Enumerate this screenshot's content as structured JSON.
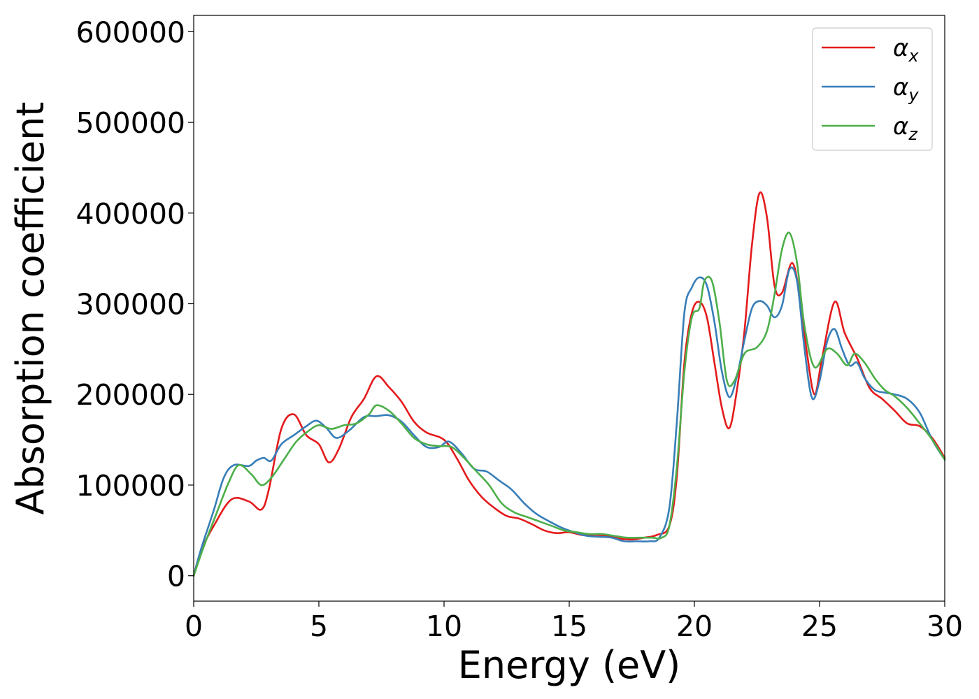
{
  "chart_data": {
    "type": "line",
    "title": "",
    "xlabel": "Energy (eV)",
    "ylabel": "Absorption coefficient",
    "xlim": [
      0,
      30
    ],
    "ylim": [
      -28000,
      618000
    ],
    "xticks": [
      0,
      5,
      10,
      15,
      20,
      25,
      30
    ],
    "xtick_labels": [
      "0",
      "5",
      "10",
      "15",
      "20",
      "25",
      "30"
    ],
    "yticks": [
      0,
      100000,
      200000,
      300000,
      400000,
      500000,
      600000
    ],
    "ytick_labels": [
      "0",
      "100000",
      "200000",
      "300000",
      "400000",
      "500000",
      "600000"
    ],
    "grid": false,
    "legend_position": "top-right",
    "series": [
      {
        "name": "α",
        "subscript": "x",
        "color": "#e41a1c",
        "x": [
          0,
          0.3,
          0.8,
          1.5,
          2.2,
          2.7,
          3.0,
          3.5,
          4.0,
          4.5,
          5.0,
          5.4,
          5.8,
          6.3,
          6.8,
          7.3,
          7.8,
          8.3,
          8.8,
          9.3,
          10.0,
          10.5,
          11.0,
          11.5,
          12.0,
          12.5,
          13.0,
          13.5,
          14.0,
          14.5,
          15.0,
          15.5,
          16.0,
          16.5,
          17.0,
          17.5,
          18.0,
          18.5,
          19.0,
          19.3,
          19.6,
          19.9,
          20.2,
          20.5,
          20.8,
          21.1,
          21.4,
          21.7,
          22.0,
          22.3,
          22.6,
          22.9,
          23.2,
          23.5,
          23.9,
          24.2,
          24.5,
          24.8,
          25.1,
          25.6,
          26.0,
          26.5,
          27.0,
          27.5,
          28.0,
          28.5,
          29.0,
          29.5,
          30.0
        ],
        "values": [
          0,
          28000,
          55000,
          84000,
          82000,
          73000,
          95000,
          162000,
          178000,
          155000,
          145000,
          125000,
          140000,
          175000,
          195000,
          220000,
          208000,
          192000,
          170000,
          158000,
          150000,
          130000,
          105000,
          87000,
          75000,
          66000,
          63000,
          57000,
          50000,
          47000,
          48000,
          45000,
          44000,
          44000,
          41000,
          40000,
          42000,
          45000,
          55000,
          110000,
          235000,
          290000,
          302000,
          285000,
          235000,
          185000,
          163000,
          205000,
          270000,
          365000,
          422000,
          395000,
          320000,
          312000,
          345000,
          310000,
          245000,
          200000,
          240000,
          302000,
          268000,
          240000,
          207000,
          195000,
          182000,
          168000,
          165000,
          152000,
          130000
        ]
      },
      {
        "name": "α",
        "subscript": "y",
        "color": "#377eb8",
        "x": [
          0,
          0.3,
          0.8,
          1.2,
          1.6,
          2.2,
          2.5,
          2.8,
          3.1,
          3.5,
          4.0,
          4.5,
          4.9,
          5.3,
          5.7,
          6.2,
          6.8,
          7.3,
          7.8,
          8.3,
          8.8,
          9.3,
          9.8,
          10.2,
          10.7,
          11.2,
          11.7,
          12.2,
          12.7,
          13.2,
          13.7,
          14.2,
          14.7,
          15.2,
          15.7,
          16.2,
          16.7,
          17.2,
          17.7,
          18.2,
          18.6,
          19.0,
          19.3,
          19.6,
          19.9,
          20.2,
          20.5,
          20.8,
          21.1,
          21.4,
          21.7,
          22.0,
          22.3,
          22.6,
          22.9,
          23.2,
          23.5,
          23.8,
          24.1,
          24.4,
          24.7,
          25.0,
          25.3,
          25.6,
          25.9,
          26.2,
          26.5,
          26.8,
          27.2,
          27.6,
          28.0,
          28.5,
          29.0,
          29.5,
          30.0
        ],
        "values": [
          0,
          30000,
          72000,
          108000,
          122000,
          121000,
          127000,
          130000,
          127000,
          145000,
          155000,
          165000,
          171000,
          163000,
          152000,
          160000,
          175000,
          176000,
          177000,
          170000,
          155000,
          142000,
          142000,
          148000,
          135000,
          118000,
          115000,
          105000,
          95000,
          80000,
          68000,
          60000,
          53000,
          48000,
          44000,
          43000,
          42000,
          38000,
          38000,
          38000,
          42000,
          75000,
          170000,
          290000,
          318000,
          329000,
          320000,
          280000,
          225000,
          197000,
          220000,
          260000,
          295000,
          303000,
          298000,
          285000,
          298000,
          338000,
          325000,
          250000,
          196000,
          215000,
          258000,
          272000,
          250000,
          232000,
          235000,
          218000,
          205000,
          202000,
          200000,
          195000,
          180000,
          150000,
          128000
        ]
      },
      {
        "name": "α",
        "subscript": "z",
        "color": "#4daf4a",
        "x": [
          0,
          0.4,
          0.9,
          1.4,
          1.8,
          2.3,
          2.7,
          3.1,
          3.6,
          4.1,
          4.6,
          5.0,
          5.5,
          6.0,
          6.5,
          7.0,
          7.3,
          7.8,
          8.3,
          8.8,
          9.3,
          9.8,
          10.3,
          10.8,
          11.3,
          11.8,
          12.3,
          12.8,
          13.3,
          13.8,
          14.3,
          14.8,
          15.3,
          15.8,
          16.3,
          16.8,
          17.3,
          17.8,
          18.3,
          18.7,
          19.0,
          19.3,
          19.6,
          19.9,
          20.2,
          20.4,
          20.7,
          21.0,
          21.3,
          21.6,
          22.0,
          22.5,
          22.9,
          23.2,
          23.5,
          23.8,
          24.1,
          24.4,
          24.8,
          25.3,
          25.7,
          26.1,
          26.4,
          26.8,
          27.2,
          27.6,
          28.0,
          28.5,
          29.0,
          29.5,
          30.0
        ],
        "values": [
          0,
          32000,
          68000,
          103000,
          122000,
          112000,
          100000,
          108000,
          128000,
          148000,
          160000,
          166000,
          162000,
          166000,
          168000,
          178000,
          188000,
          182000,
          168000,
          152000,
          145000,
          143000,
          142000,
          130000,
          115000,
          100000,
          80000,
          70000,
          65000,
          60000,
          55000,
          50000,
          48000,
          46000,
          46000,
          44000,
          42000,
          42000,
          42000,
          42000,
          55000,
          120000,
          225000,
          285000,
          295000,
          325000,
          325000,
          280000,
          215000,
          215000,
          245000,
          252000,
          270000,
          310000,
          360000,
          378000,
          345000,
          275000,
          230000,
          250000,
          245000,
          232000,
          245000,
          235000,
          218000,
          205000,
          198000,
          185000,
          168000,
          150000,
          128000
        ]
      }
    ]
  }
}
